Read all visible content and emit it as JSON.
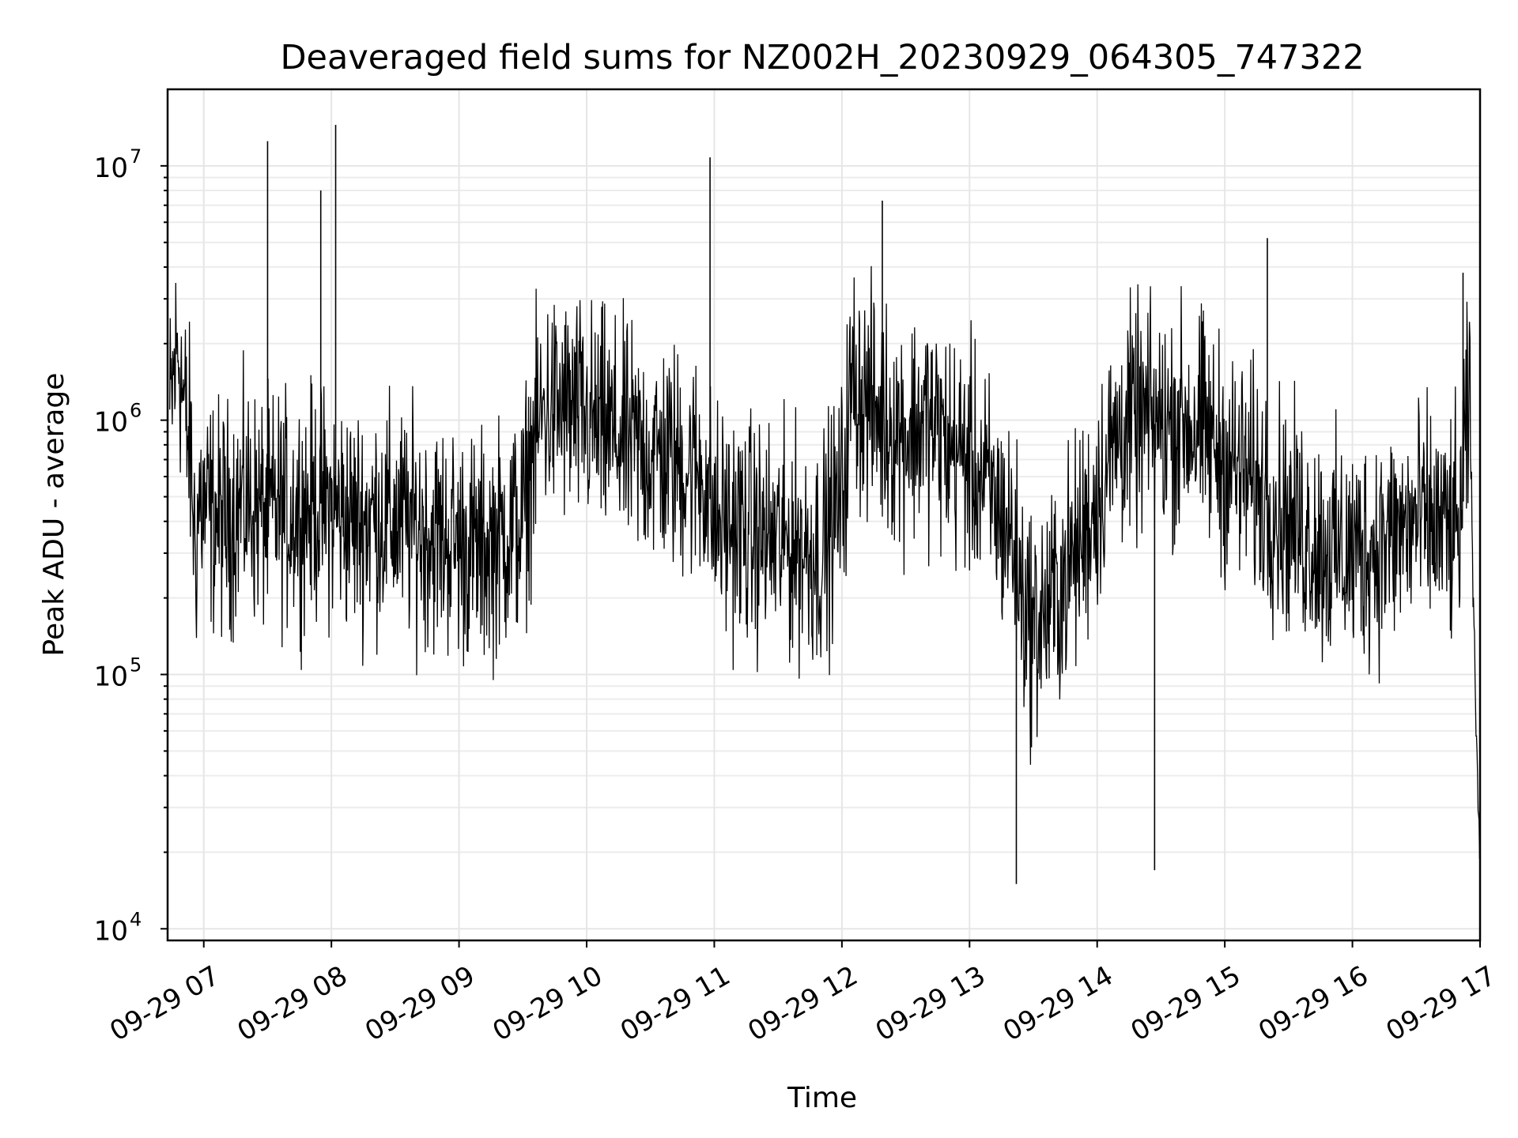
{
  "chart_data": {
    "type": "line",
    "title": "Deaveraged field sums for NZ002H_20230929_064305_747322",
    "xlabel": "Time",
    "ylabel": "Peak ADU - average",
    "yscale": "log",
    "ylim": [
      9000,
      20000000
    ],
    "xlim": [
      "2023-09-29 06:43",
      "2023-09-29 17:00"
    ],
    "grid": true,
    "line_color": "#000000",
    "x_ticks": [
      {
        "value": "2023-09-29 07:00",
        "label": "09-29 07"
      },
      {
        "value": "2023-09-29 08:00",
        "label": "09-29 08"
      },
      {
        "value": "2023-09-29 09:00",
        "label": "09-29 09"
      },
      {
        "value": "2023-09-29 10:00",
        "label": "09-29 10"
      },
      {
        "value": "2023-09-29 11:00",
        "label": "09-29 11"
      },
      {
        "value": "2023-09-29 12:00",
        "label": "09-29 12"
      },
      {
        "value": "2023-09-29 13:00",
        "label": "09-29 13"
      },
      {
        "value": "2023-09-29 14:00",
        "label": "09-29 14"
      },
      {
        "value": "2023-09-29 15:00",
        "label": "09-29 15"
      },
      {
        "value": "2023-09-29 16:00",
        "label": "09-29 16"
      },
      {
        "value": "2023-09-29 17:00",
        "label": "09-29 17"
      }
    ],
    "y_ticks": [
      {
        "value": 10000,
        "base": "10",
        "exp": "4"
      },
      {
        "value": 100000,
        "base": "10",
        "exp": "5"
      },
      {
        "value": 1000000,
        "base": "10",
        "exp": "6"
      },
      {
        "value": 10000000,
        "base": "10",
        "exp": "7"
      }
    ],
    "series": [
      {
        "x": [
          "2023-09-29 06:44",
          "2023-09-29 06:46",
          "2023-09-29 06:48",
          "2023-09-29 06:50",
          "2023-09-29 06:52",
          "2023-09-29 06:54",
          "2023-09-29 06:56",
          "2023-09-29 06:58",
          "2023-09-29 07:00",
          "2023-09-29 07:05",
          "2023-09-29 07:10",
          "2023-09-29 07:15",
          "2023-09-29 07:20",
          "2023-09-29 07:25",
          "2023-09-29 07:30",
          "2023-09-29 07:35",
          "2023-09-29 07:40",
          "2023-09-29 07:45",
          "2023-09-29 07:50",
          "2023-09-29 07:55",
          "2023-09-29 08:00",
          "2023-09-29 08:05",
          "2023-09-29 08:10",
          "2023-09-29 08:20",
          "2023-09-29 08:30",
          "2023-09-29 08:40",
          "2023-09-29 08:50",
          "2023-09-29 09:00",
          "2023-09-29 09:10",
          "2023-09-29 09:20",
          "2023-09-29 09:30",
          "2023-09-29 09:35",
          "2023-09-29 09:40",
          "2023-09-29 09:50",
          "2023-09-29 10:00",
          "2023-09-29 10:10",
          "2023-09-29 10:20",
          "2023-09-29 10:30",
          "2023-09-29 10:40",
          "2023-09-29 10:50",
          "2023-09-29 10:56",
          "2023-09-29 11:00",
          "2023-09-29 11:10",
          "2023-09-29 11:20",
          "2023-09-29 11:30",
          "2023-09-29 11:40",
          "2023-09-29 11:50",
          "2023-09-29 12:00",
          "2023-09-29 12:05",
          "2023-09-29 12:10",
          "2023-09-29 12:20",
          "2023-09-29 12:30",
          "2023-09-29 12:40",
          "2023-09-29 12:50",
          "2023-09-29 13:00",
          "2023-09-29 13:10",
          "2023-09-29 13:20",
          "2023-09-29 13:25",
          "2023-09-29 13:30",
          "2023-09-29 13:40",
          "2023-09-29 13:50",
          "2023-09-29 14:00",
          "2023-09-29 14:10",
          "2023-09-29 14:20",
          "2023-09-29 14:30",
          "2023-09-29 14:40",
          "2023-09-29 14:50",
          "2023-09-29 15:00",
          "2023-09-29 15:10",
          "2023-09-29 15:20",
          "2023-09-29 15:30",
          "2023-09-29 15:40",
          "2023-09-29 15:50",
          "2023-09-29 16:00",
          "2023-09-29 16:10",
          "2023-09-29 16:20",
          "2023-09-29 16:30",
          "2023-09-29 16:40",
          "2023-09-29 16:50",
          "2023-09-29 16:55",
          "2023-09-29 16:58",
          "2023-09-29 17:00"
        ],
        "y": [
          1000000,
          1500000,
          2000000,
          1300000,
          900000,
          700000,
          300000,
          500000,
          450000,
          420000,
          400000,
          450000,
          480000,
          450000,
          420000,
          450000,
          430000,
          450000,
          460000,
          470000,
          450000,
          430000,
          400000,
          420000,
          400000,
          380000,
          350000,
          330000,
          300000,
          350000,
          400000,
          800000,
          1100000,
          1100000,
          1000000,
          900000,
          800000,
          750000,
          700000,
          650000,
          600000,
          400000,
          380000,
          350000,
          330000,
          320000,
          300000,
          500000,
          1500000,
          1200000,
          1000000,
          900000,
          1000000,
          800000,
          700000,
          500000,
          350000,
          200000,
          150000,
          200000,
          300000,
          500000,
          900000,
          1000000,
          950000,
          1000000,
          900000,
          700000,
          600000,
          500000,
          400000,
          350000,
          300000,
          300000,
          320000,
          350000,
          400000,
          380000,
          350000,
          1200000,
          80000,
          20000
        ]
      }
    ]
  }
}
